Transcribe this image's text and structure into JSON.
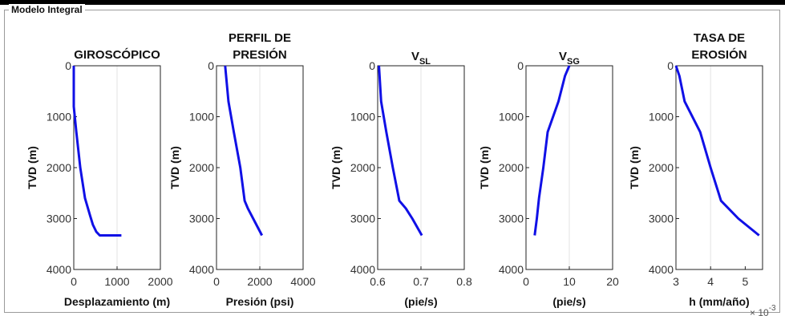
{
  "panel": {
    "title": "Modelo Integral"
  },
  "chart_data": [
    {
      "type": "line",
      "title": "GIROSCÓPICO",
      "xlabel": "Desplazamiento (m)",
      "ylabel": "TVD (m)",
      "xlim": [
        0,
        2000
      ],
      "ylim": [
        4000,
        0
      ],
      "xticks": [
        "0",
        "1000",
        "2000"
      ],
      "yticks": [
        "0",
        "1000",
        "2000",
        "3000",
        "4000"
      ],
      "series": [
        {
          "x": [
            0,
            0,
            60,
            150,
            260,
            380,
            440,
            520,
            600,
            1100
          ],
          "y": [
            0,
            800,
            1300,
            2000,
            2600,
            2950,
            3120,
            3260,
            3330,
            3330
          ]
        }
      ]
    },
    {
      "type": "line",
      "title": "PERFIL DE\nPRESIÓN",
      "xlabel": "Presión (psi)",
      "ylabel": "TVD (m)",
      "xlim": [
        0,
        4000
      ],
      "ylim": [
        4000,
        0
      ],
      "xticks": [
        "0",
        "2000",
        "4000"
      ],
      "yticks": [
        "0",
        "1000",
        "2000",
        "3000",
        "4000"
      ],
      "series": [
        {
          "x": [
            400,
            550,
            800,
            1100,
            1300,
            1450,
            2100
          ],
          "y": [
            0,
            700,
            1300,
            2000,
            2650,
            2800,
            3330
          ]
        }
      ]
    },
    {
      "type": "line",
      "title": "V",
      "title_sub": "SL",
      "xlabel": "(pie/s)",
      "ylabel": "TVD (m)",
      "xlim": [
        0.6,
        0.8
      ],
      "ylim": [
        4000,
        0
      ],
      "xticks": [
        "0.6",
        "0.7",
        "0.8"
      ],
      "yticks": [
        "0",
        "1000",
        "2000",
        "3000",
        "4000"
      ],
      "series": [
        {
          "x": [
            0.603,
            0.608,
            0.62,
            0.635,
            0.65,
            0.665,
            0.68,
            0.702
          ],
          "y": [
            0,
            700,
            1300,
            2000,
            2650,
            2800,
            3000,
            3330
          ]
        }
      ]
    },
    {
      "type": "line",
      "title": "V",
      "title_sub": "SG",
      "xlabel": "(pie/s)",
      "ylabel": "TVD (m)",
      "xlim": [
        0,
        20
      ],
      "ylim": [
        4000,
        0
      ],
      "xticks": [
        "0",
        "10",
        "20"
      ],
      "yticks": [
        "0",
        "1000",
        "2000",
        "3000",
        "4000"
      ],
      "series": [
        {
          "x": [
            10,
            9,
            7.5,
            5,
            4,
            3,
            2.5,
            2
          ],
          "y": [
            0,
            200,
            700,
            1300,
            2000,
            2600,
            3000,
            3330
          ]
        }
      ]
    },
    {
      "type": "line",
      "title": "TASA DE\nEROSIÓN",
      "xlabel": "h (mm/año)",
      "ylabel": "TVD (m)",
      "x_multiplier": "× 10",
      "x_multiplier_exp": "-3",
      "xlim": [
        3,
        5.5
      ],
      "ylim": [
        4000,
        0
      ],
      "xticks": [
        "3",
        "4",
        "5"
      ],
      "yticks": [
        "0",
        "1000",
        "2000",
        "3000",
        "4000"
      ],
      "series": [
        {
          "x": [
            3,
            3.1,
            3.25,
            3.7,
            4.0,
            4.3,
            4.8,
            5.4
          ],
          "y": [
            0,
            200,
            700,
            1300,
            2000,
            2650,
            3000,
            3330
          ]
        }
      ]
    }
  ]
}
